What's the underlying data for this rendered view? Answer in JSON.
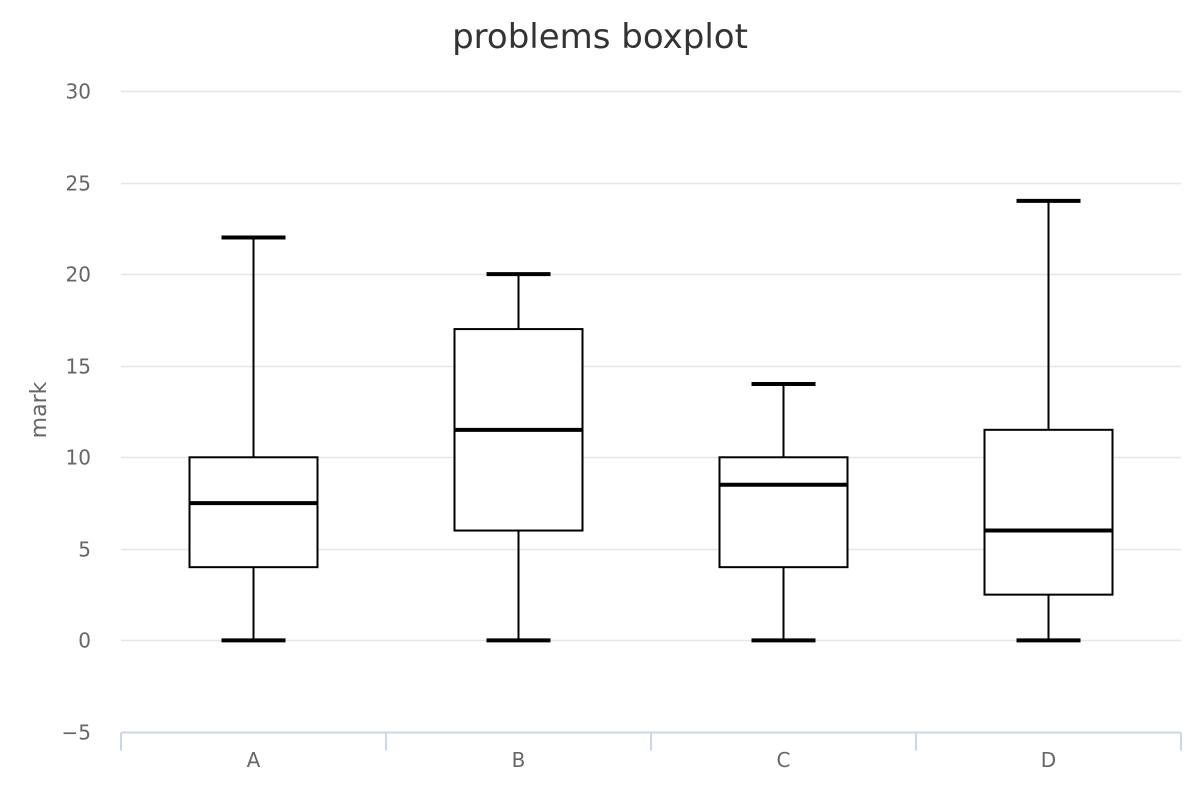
{
  "chart_data": {
    "type": "boxplot",
    "title": "problems boxplot",
    "xlabel": "",
    "ylabel": "mark",
    "ylim": [
      -5,
      30
    ],
    "yticks": [
      -5,
      0,
      5,
      10,
      15,
      20,
      25,
      30
    ],
    "ytick_labels": [
      "−5",
      "0",
      "5",
      "10",
      "15",
      "20",
      "25",
      "30"
    ],
    "categories": [
      "A",
      "B",
      "C",
      "D"
    ],
    "boxes": [
      {
        "category": "A",
        "min": 0,
        "q1": 4,
        "median": 7.5,
        "q3": 10,
        "max": 22
      },
      {
        "category": "B",
        "min": 0,
        "q1": 6,
        "median": 11.5,
        "q3": 17,
        "max": 20
      },
      {
        "category": "C",
        "min": 0,
        "q1": 4,
        "median": 8.5,
        "q3": 10,
        "max": 14
      },
      {
        "category": "D",
        "min": 0,
        "q1": 2.5,
        "median": 6,
        "q3": 11.5,
        "max": 24
      }
    ],
    "grid": true,
    "legend": "none",
    "colors": {
      "box_stroke": "#000000",
      "box_fill": "#ffffff",
      "grid": "#e6e6e6",
      "axis": "#ccd6eb",
      "text": "#666666",
      "title": "#333333"
    }
  }
}
